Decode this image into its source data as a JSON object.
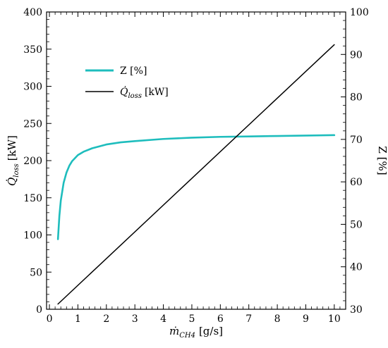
{
  "chart_data": {
    "type": "line",
    "xlabel": "ṁ",
    "xlabel_sub": "CH4",
    "xlabel_unit": "[g/s]",
    "ylabel_left": "Q̇",
    "ylabel_left_sub": "loss",
    "ylabel_left_unit": "[kW]",
    "ylabel_right": "Z [%]",
    "xlim": [
      -0.1,
      10.4
    ],
    "ylim_left": [
      0,
      400
    ],
    "ylim_right": [
      30,
      100
    ],
    "x_ticks": [
      0,
      1,
      2,
      3,
      4,
      5,
      6,
      7,
      8,
      9,
      10
    ],
    "y_left_ticks": [
      0,
      50,
      100,
      150,
      200,
      250,
      300,
      350,
      400
    ],
    "y_right_ticks": [
      30,
      40,
      50,
      60,
      70,
      80,
      90,
      100
    ],
    "grid": false,
    "legend_position": "upper-left",
    "series": [
      {
        "name": "Z [%]",
        "axis": "right",
        "color": "#1ebdbd",
        "x": [
          0.3,
          0.35,
          0.4,
          0.5,
          0.6,
          0.7,
          0.8,
          1.0,
          1.2,
          1.5,
          2.0,
          2.5,
          3.0,
          4.0,
          5.0,
          6.0,
          7.0,
          8.0,
          9.0,
          10.0
        ],
        "values": [
          46.5,
          52.0,
          55.6,
          59.8,
          62.2,
          63.8,
          64.9,
          66.3,
          67.1,
          67.9,
          68.8,
          69.3,
          69.6,
          70.1,
          70.4,
          70.6,
          70.7,
          70.8,
          70.9,
          71.0
        ]
      },
      {
        "name": "Q̇",
        "name_sub": "loss",
        "name_unit": "[kW]",
        "axis": "left",
        "color": "#000000",
        "x": [
          0.3,
          10.0
        ],
        "values": [
          7,
          356
        ]
      }
    ]
  }
}
